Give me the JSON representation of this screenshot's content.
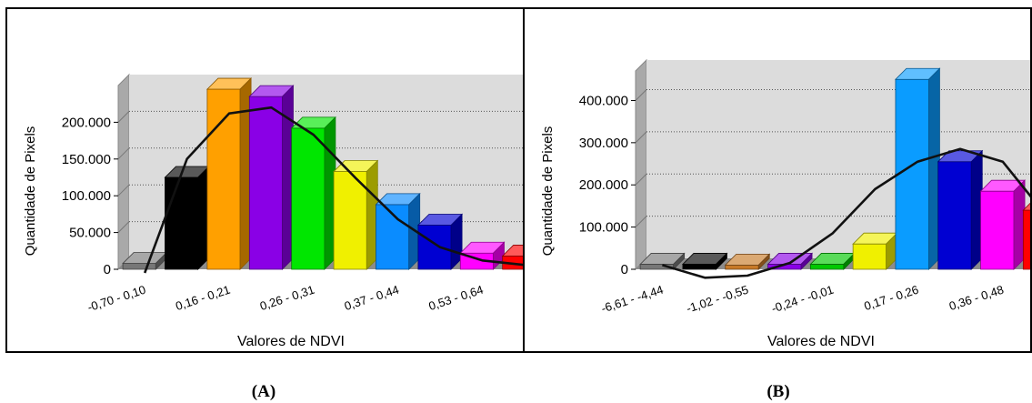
{
  "chart_data": [
    {
      "type": "bar",
      "panel_label": "(A)",
      "xlabel": "Valores de NDVI",
      "ylabel": "Quantidade de Pixels",
      "ylim": [
        0,
        250000
      ],
      "yticks": [
        0,
        50000,
        100000,
        150000,
        200000
      ],
      "ytick_labels": [
        "0",
        "50.000",
        "100.000",
        "150.000",
        "200.000"
      ],
      "grid": true,
      "categories": [
        "-0,70 - 0,10",
        "",
        "0,16 - 0,21",
        "",
        "0,26 - 0,31",
        "",
        "0,37 - 0,44",
        "",
        "0,53 - 0,64",
        ""
      ],
      "visible_xtick_labels": [
        "-0,70 - 0,10",
        "0,16 - 0,21",
        "0,26 - 0,31",
        "0,37 - 0,44",
        "0,53 - 0,64"
      ],
      "values": [
        8000,
        125000,
        245000,
        235000,
        192000,
        133000,
        88000,
        60000,
        22000,
        18000
      ],
      "bar_colors": [
        "#777777",
        "#000000",
        "#ffa000",
        "#8a00e6",
        "#00e600",
        "#f0f000",
        "#0a8cff",
        "#0000d2",
        "#ff00ff",
        "#ff0000"
      ],
      "line_values": [
        -5000,
        150000,
        212000,
        220000,
        183000,
        124000,
        68000,
        30000,
        12000,
        6000
      ]
    },
    {
      "type": "bar",
      "panel_label": "(B)",
      "xlabel": "Valores de NDVI",
      "ylabel": "Quantidade de Pixels",
      "ylim": [
        0,
        470000
      ],
      "yticks": [
        0,
        100000,
        200000,
        300000,
        400000
      ],
      "ytick_labels": [
        "0",
        "100.000",
        "200.000",
        "300.000",
        "400.000"
      ],
      "grid": true,
      "categories": [
        "-6,61 - -4,44",
        "",
        "-1,02 - -0,55",
        "",
        "-0,24 - -0,01",
        "",
        "0,17 - 0,26",
        "",
        "0,36 - 0,48",
        ""
      ],
      "visible_xtick_labels": [
        "-6,61 - -4,44",
        "-1,02 - -0,55",
        "-0,24 - -0,01",
        "0,17 - 0,26",
        "0,36 - 0,48"
      ],
      "values": [
        12000,
        12000,
        10000,
        12000,
        12000,
        60000,
        450000,
        255000,
        185000,
        140000
      ],
      "bar_colors": [
        "#777777",
        "#000000",
        "#c87a28",
        "#8a00e6",
        "#00c800",
        "#f0f000",
        "#0a9cff",
        "#0000d2",
        "#ff00ff",
        "#ff0000"
      ],
      "line_values": [
        10000,
        -20000,
        -15000,
        15000,
        85000,
        190000,
        255000,
        285000,
        255000,
        130000
      ]
    }
  ]
}
